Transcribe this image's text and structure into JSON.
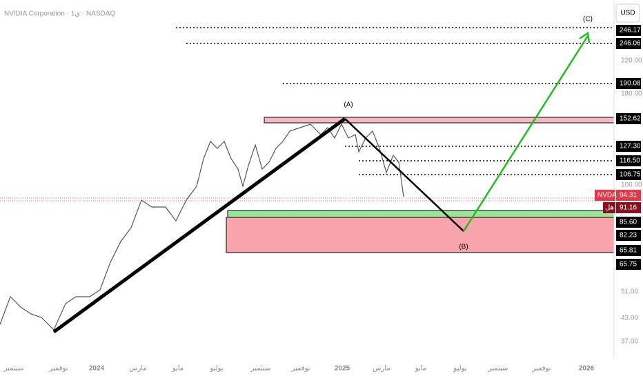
{
  "header": {
    "title": "NVIDIA Corporation · 1ي · NASDAQ",
    "currency": "USD"
  },
  "price_axis": [
    "220.00",
    "180.00",
    "100.00",
    "51.00",
    "43.00",
    "37.00"
  ],
  "price_levels": [
    "246.17",
    "246.06",
    "190.08",
    "152.62",
    "127.30",
    "116.50",
    "106.75",
    "94.31",
    "91.16",
    "85.60",
    "82.23",
    "65.81",
    "65.75"
  ],
  "symbol_tag": "NVDA",
  "close_tag": "هل",
  "time_axis": [
    "سبتمبر",
    "نوفمبر",
    "2024",
    "مارس",
    "مايو",
    "يوليو",
    "سبتمبر",
    "نوفمبر",
    "2025",
    "مارس",
    "مايو",
    "يوليو",
    "سبتمبر",
    "نوفمبر",
    "2026"
  ],
  "wave_labels": [
    "(A)",
    "(B)",
    "(C)"
  ]
}
